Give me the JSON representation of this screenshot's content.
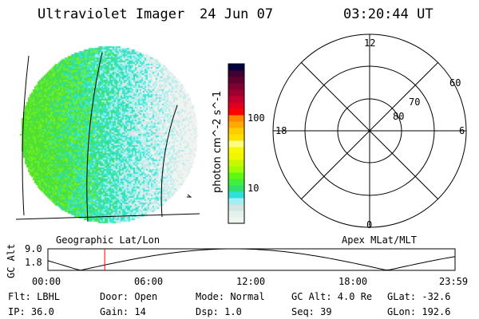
{
  "header": {
    "instrument": "Ultraviolet Imager",
    "date": "24 Jun 07",
    "time": "03:20:44 UT"
  },
  "colorbar": {
    "label": "photon cm^-2 s^-1",
    "ticks": [
      "100",
      "10"
    ],
    "colors": [
      "#eef6f0",
      "#e4f2ec",
      "#d4e4e4",
      "#a0f0f4",
      "#30e0dc",
      "#30e070",
      "#40ee40",
      "#60f810",
      "#a0fc00",
      "#c8f800",
      "#f0f800",
      "#f8f800",
      "#fffc80",
      "#ffe000",
      "#ffcc00",
      "#ffaa00",
      "#ff8800",
      "#ff0000",
      "#e00020",
      "#c00030",
      "#a00030",
      "#800030",
      "#600030",
      "#400030",
      "#000040"
    ]
  },
  "polar": {
    "labels": {
      "top": "12",
      "bottom": "0",
      "left": "18",
      "right": "6",
      "r60": "60",
      "r70": "70",
      "r80": "80"
    }
  },
  "captions": {
    "left": "Geographic Lat/Lon",
    "right": "Apex MLat/MLT"
  },
  "altplot": {
    "ylabel": "GC Alt",
    "ymax": "9.0",
    "ymin": "1.8",
    "xticks": [
      "00:00",
      "06:00",
      "12:00",
      "18:00",
      "23:59"
    ],
    "current_time_hours": 3.35,
    "marker_color": "#ff0000"
  },
  "status": {
    "flt": "Flt: LBHL",
    "ip": "IP: 36.0",
    "door": "Door: Open",
    "gain": "Gain: 14",
    "mode": "Mode: Normal",
    "dsp": "Dsp:    1.0",
    "gcalt": "GC Alt: 4.0 Re",
    "seq": "Seq: 39",
    "glat": "GLat: -32.6",
    "glon": "GLon: 192.6"
  }
}
